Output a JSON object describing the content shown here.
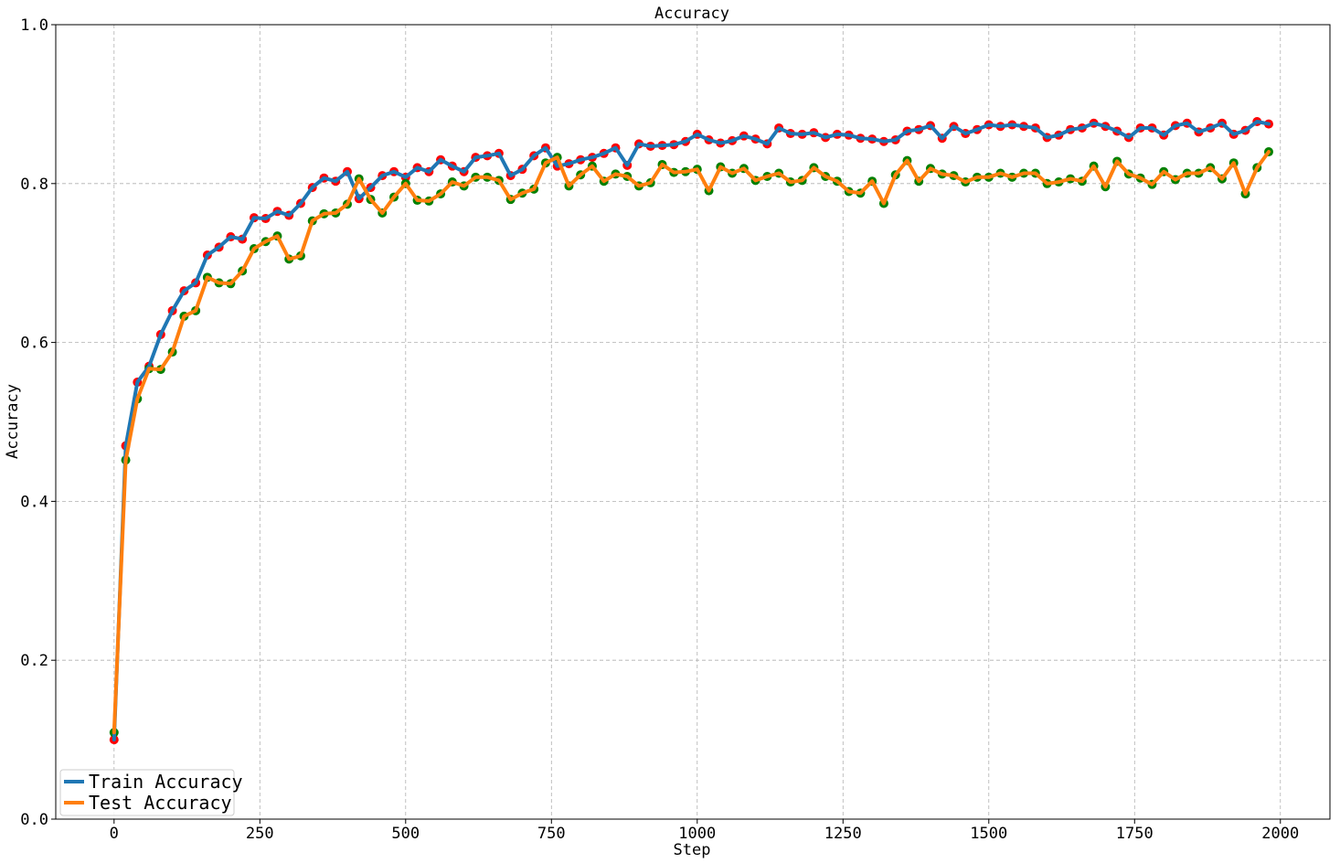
{
  "chart_data": {
    "type": "line",
    "title": "Accuracy",
    "xlabel": "Step",
    "ylabel": "Accuracy",
    "xlim": [
      -100,
      2085
    ],
    "ylim": [
      0.0,
      1.0
    ],
    "xticks": [
      0,
      250,
      500,
      750,
      1000,
      1250,
      1500,
      1750,
      2000
    ],
    "yticks": [
      0.0,
      0.2,
      0.4,
      0.6,
      0.8,
      1.0
    ],
    "xtick_labels": [
      "0",
      "250",
      "500",
      "750",
      "1000",
      "1250",
      "1500",
      "1750",
      "2000"
    ],
    "ytick_labels": [
      "0.0",
      "0.2",
      "0.4",
      "0.6",
      "0.8",
      "1.0"
    ],
    "grid": true,
    "legend_position": "lower-left",
    "x": [
      0,
      20,
      40,
      60,
      80,
      100,
      120,
      140,
      160,
      180,
      200,
      220,
      240,
      260,
      280,
      300,
      320,
      340,
      360,
      380,
      400,
      420,
      440,
      460,
      480,
      500,
      520,
      540,
      560,
      580,
      600,
      620,
      640,
      660,
      680,
      700,
      720,
      740,
      760,
      780,
      800,
      820,
      840,
      860,
      880,
      900,
      920,
      940,
      960,
      980,
      1000,
      1020,
      1040,
      1060,
      1080,
      1100,
      1120,
      1140,
      1160,
      1180,
      1200,
      1220,
      1240,
      1260,
      1280,
      1300,
      1320,
      1340,
      1360,
      1380,
      1400,
      1420,
      1440,
      1460,
      1480,
      1500,
      1520,
      1540,
      1560,
      1580,
      1600,
      1620,
      1640,
      1660,
      1680,
      1700,
      1720,
      1740,
      1760,
      1780,
      1800,
      1820,
      1840,
      1860,
      1880,
      1900,
      1920,
      1940,
      1960,
      1980
    ],
    "series": [
      {
        "name": "Train Accuracy",
        "color": "#1f77b4",
        "marker_color": "#ff0000",
        "values": [
          0.1,
          0.47,
          0.55,
          0.57,
          0.61,
          0.64,
          0.665,
          0.675,
          0.71,
          0.72,
          0.733,
          0.73,
          0.757,
          0.756,
          0.765,
          0.76,
          0.775,
          0.795,
          0.807,
          0.803,
          0.815,
          0.781,
          0.795,
          0.81,
          0.815,
          0.808,
          0.82,
          0.815,
          0.83,
          0.822,
          0.815,
          0.833,
          0.835,
          0.838,
          0.81,
          0.818,
          0.835,
          0.845,
          0.822,
          0.825,
          0.83,
          0.833,
          0.838,
          0.845,
          0.823,
          0.85,
          0.847,
          0.848,
          0.849,
          0.853,
          0.862,
          0.855,
          0.851,
          0.854,
          0.86,
          0.856,
          0.85,
          0.87,
          0.863,
          0.862,
          0.864,
          0.858,
          0.862,
          0.861,
          0.857,
          0.856,
          0.853,
          0.855,
          0.866,
          0.868,
          0.873,
          0.857,
          0.872,
          0.863,
          0.868,
          0.874,
          0.872,
          0.874,
          0.872,
          0.87,
          0.858,
          0.861,
          0.868,
          0.87,
          0.876,
          0.872,
          0.866,
          0.858,
          0.87,
          0.87,
          0.861,
          0.873,
          0.876,
          0.865,
          0.87,
          0.876,
          0.862,
          0.867,
          0.878,
          0.875
        ]
      },
      {
        "name": "Test Accuracy",
        "color": "#ff7f0e",
        "marker_color": "#008000",
        "values": [
          0.109,
          0.452,
          0.529,
          0.567,
          0.566,
          0.588,
          0.633,
          0.64,
          0.682,
          0.675,
          0.674,
          0.69,
          0.718,
          0.727,
          0.734,
          0.705,
          0.709,
          0.753,
          0.762,
          0.763,
          0.774,
          0.806,
          0.78,
          0.763,
          0.783,
          0.8,
          0.779,
          0.778,
          0.787,
          0.802,
          0.797,
          0.808,
          0.808,
          0.804,
          0.78,
          0.788,
          0.793,
          0.826,
          0.833,
          0.797,
          0.811,
          0.822,
          0.803,
          0.812,
          0.809,
          0.797,
          0.801,
          0.824,
          0.814,
          0.815,
          0.818,
          0.791,
          0.821,
          0.813,
          0.819,
          0.804,
          0.809,
          0.813,
          0.802,
          0.804,
          0.82,
          0.809,
          0.803,
          0.79,
          0.788,
          0.803,
          0.775,
          0.811,
          0.829,
          0.803,
          0.819,
          0.812,
          0.81,
          0.802,
          0.808,
          0.808,
          0.813,
          0.808,
          0.813,
          0.813,
          0.8,
          0.802,
          0.806,
          0.803,
          0.822,
          0.796,
          0.828,
          0.812,
          0.807,
          0.799,
          0.815,
          0.805,
          0.813,
          0.813,
          0.82,
          0.806,
          0.826,
          0.787,
          0.82,
          0.84
        ]
      }
    ]
  }
}
